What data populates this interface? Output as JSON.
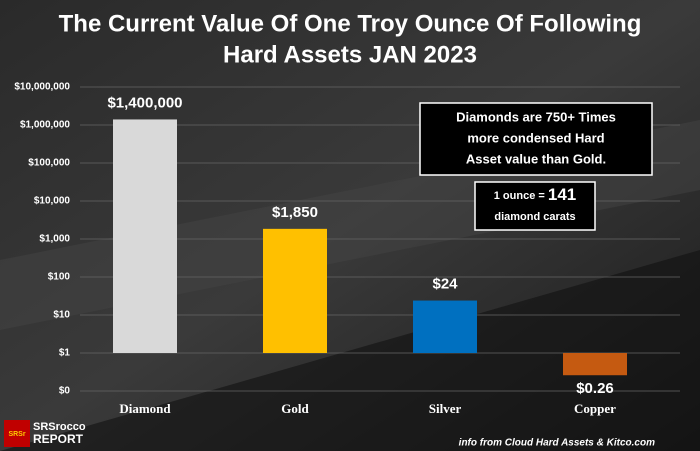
{
  "chart_data": {
    "type": "bar",
    "title": [
      "The Current Value Of One Troy Ounce Of Following",
      "Hard Assets JAN 2023"
    ],
    "categories": [
      "Diamond",
      "Gold",
      "Silver",
      "Copper"
    ],
    "values": [
      1400000,
      1850,
      24,
      0.26
    ],
    "value_labels": [
      "$1,400,000",
      "$1,850",
      "$24",
      "$0.26"
    ],
    "colors": [
      "#d9d9d9",
      "#ffc000",
      "#0070c0",
      "#c55a11"
    ],
    "log_scale": true,
    "ylim": [
      0.1,
      10000000
    ],
    "yticks": [
      {
        "value": 0.1,
        "label": "$0"
      },
      {
        "value": 1,
        "label": "$1"
      },
      {
        "value": 10,
        "label": "$10"
      },
      {
        "value": 100,
        "label": "$100"
      },
      {
        "value": 1000,
        "label": "$1,000"
      },
      {
        "value": 10000,
        "label": "$10,000"
      },
      {
        "value": 100000,
        "label": "$100,000"
      },
      {
        "value": 1000000,
        "label": "$1,000,000"
      },
      {
        "value": 10000000,
        "label": "$10,000,000"
      }
    ],
    "grid": true,
    "annotations": [
      [
        "Diamonds are 750+ Times",
        "more condensed Hard",
        "Asset value than Gold."
      ],
      [
        "1 ounce = ",
        "141",
        "diamond carats"
      ]
    ],
    "source": "info from Cloud Hard Assets & Kitco.com",
    "logo": [
      "SRSrocco",
      "REPORT",
      "SRSr"
    ]
  }
}
